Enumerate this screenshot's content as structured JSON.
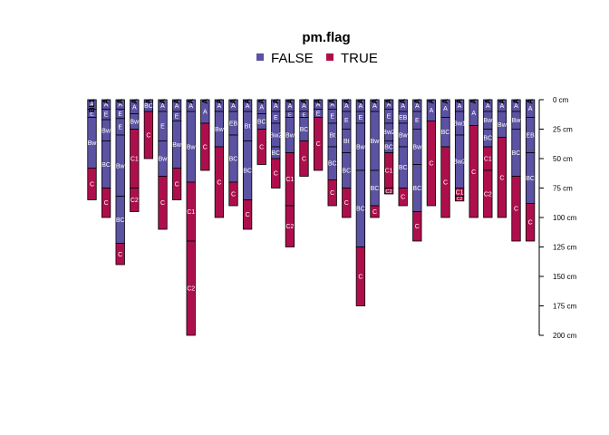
{
  "chart_data": {
    "type": "soil-profile-sketch",
    "legend": {
      "title": "pm.flag",
      "position": "top-center",
      "entries": [
        {
          "label": "FALSE",
          "color": "#5B52A3"
        },
        {
          "label": "TRUE",
          "color": "#AE0F4C"
        }
      ]
    },
    "axis": {
      "side": "right",
      "unit": "cm",
      "range": [
        0,
        200
      ],
      "ticks": [
        0,
        25,
        50,
        75,
        100,
        125,
        150,
        175,
        200
      ],
      "tick_labels": [
        "0 cm",
        "25 cm",
        "50 cm",
        "75 cm",
        "100 cm",
        "125 cm",
        "150 cm",
        "175 cm",
        "200 cm"
      ]
    },
    "profiles": [
      {
        "id": "BL1",
        "horizons": [
          {
            "name": "A",
            "top": 0,
            "bottom": 8,
            "pm": false
          },
          {
            "name": "E",
            "top": 8,
            "bottom": 15,
            "pm": false
          },
          {
            "name": "Bw",
            "top": 15,
            "bottom": 58,
            "pm": false
          },
          {
            "name": "C",
            "top": 58,
            "bottom": 85,
            "pm": true
          }
        ]
      },
      {
        "id": "A",
        "horizons": [
          {
            "name": "A",
            "top": 0,
            "bottom": 8,
            "pm": false
          },
          {
            "name": "E",
            "top": 8,
            "bottom": 17,
            "pm": false
          },
          {
            "name": "Bw",
            "top": 17,
            "bottom": 35,
            "pm": false
          },
          {
            "name": "BC",
            "top": 35,
            "bottom": 75,
            "pm": false
          },
          {
            "name": "C",
            "top": 75,
            "bottom": 100,
            "pm": true
          }
        ]
      },
      {
        "id": "A",
        "horizons": [
          {
            "name": "A",
            "top": 0,
            "bottom": 8,
            "pm": false
          },
          {
            "name": "E",
            "top": 8,
            "bottom": 16,
            "pm": false
          },
          {
            "name": "E",
            "top": 16,
            "bottom": 30,
            "pm": false
          },
          {
            "name": "Bw",
            "top": 30,
            "bottom": 82,
            "pm": false
          },
          {
            "name": "BC",
            "top": 82,
            "bottom": 122,
            "pm": false
          },
          {
            "name": "C",
            "top": 122,
            "bottom": 140,
            "pm": true
          }
        ]
      },
      {
        "id": "A",
        "horizons": [
          {
            "name": "A",
            "top": 0,
            "bottom": 12,
            "pm": false
          },
          {
            "name": "Bw",
            "top": 12,
            "bottom": 25,
            "pm": false
          },
          {
            "name": "C1",
            "top": 25,
            "bottom": 75,
            "pm": true
          },
          {
            "name": "C2",
            "top": 75,
            "bottom": 95,
            "pm": true
          }
        ]
      },
      {
        "id": "A",
        "horizons": [
          {
            "name": "BC",
            "top": 0,
            "bottom": 10,
            "pm": false
          },
          {
            "name": "C",
            "top": 10,
            "bottom": 50,
            "pm": true
          }
        ]
      },
      {
        "id": "A",
        "horizons": [
          {
            "name": "A",
            "top": 0,
            "bottom": 10,
            "pm": false
          },
          {
            "name": "E",
            "top": 10,
            "bottom": 35,
            "pm": false
          },
          {
            "name": "Bw",
            "top": 35,
            "bottom": 65,
            "pm": false
          },
          {
            "name": "C",
            "top": 65,
            "bottom": 110,
            "pm": true
          }
        ]
      },
      {
        "id": "A",
        "horizons": [
          {
            "name": "A",
            "top": 0,
            "bottom": 10,
            "pm": false
          },
          {
            "name": "E",
            "top": 10,
            "bottom": 18,
            "pm": false
          },
          {
            "name": "Bw",
            "top": 18,
            "bottom": 58,
            "pm": false
          },
          {
            "name": "C",
            "top": 58,
            "bottom": 85,
            "pm": true
          }
        ]
      },
      {
        "id": "A",
        "horizons": [
          {
            "name": "A",
            "top": 0,
            "bottom": 10,
            "pm": false
          },
          {
            "name": "Bw",
            "top": 10,
            "bottom": 70,
            "pm": false
          },
          {
            "name": "C1",
            "top": 70,
            "bottom": 120,
            "pm": true
          },
          {
            "name": "C2",
            "top": 120,
            "bottom": 200,
            "pm": true
          }
        ]
      },
      {
        "id": "A",
        "horizons": [
          {
            "name": "A",
            "top": 0,
            "bottom": 20,
            "pm": false
          },
          {
            "name": "C",
            "top": 20,
            "bottom": 60,
            "pm": true
          }
        ]
      },
      {
        "id": "A",
        "horizons": [
          {
            "name": "A",
            "top": 0,
            "bottom": 10,
            "pm": false
          },
          {
            "name": "Bw",
            "top": 10,
            "bottom": 40,
            "pm": false
          },
          {
            "name": "C",
            "top": 40,
            "bottom": 100,
            "pm": true
          }
        ]
      },
      {
        "id": "A",
        "horizons": [
          {
            "name": "A",
            "top": 0,
            "bottom": 10,
            "pm": false
          },
          {
            "name": "EB",
            "top": 10,
            "bottom": 30,
            "pm": false
          },
          {
            "name": "BC",
            "top": 30,
            "bottom": 70,
            "pm": false
          },
          {
            "name": "C",
            "top": 70,
            "bottom": 90,
            "pm": true
          }
        ]
      },
      {
        "id": "A",
        "horizons": [
          {
            "name": "A",
            "top": 0,
            "bottom": 10,
            "pm": false
          },
          {
            "name": "Bt",
            "top": 10,
            "bottom": 35,
            "pm": false
          },
          {
            "name": "BC",
            "top": 35,
            "bottom": 85,
            "pm": false
          },
          {
            "name": "C",
            "top": 85,
            "bottom": 110,
            "pm": true
          }
        ]
      },
      {
        "id": "A",
        "horizons": [
          {
            "name": "A",
            "top": 0,
            "bottom": 12,
            "pm": false
          },
          {
            "name": "BC",
            "top": 12,
            "bottom": 25,
            "pm": false
          },
          {
            "name": "C",
            "top": 25,
            "bottom": 55,
            "pm": true
          }
        ]
      },
      {
        "id": "A",
        "horizons": [
          {
            "name": "A",
            "top": 0,
            "bottom": 10,
            "pm": false
          },
          {
            "name": "E",
            "top": 10,
            "bottom": 20,
            "pm": false
          },
          {
            "name": "Bw2",
            "top": 20,
            "bottom": 40,
            "pm": false
          },
          {
            "name": "BC",
            "top": 40,
            "bottom": 50,
            "pm": false
          },
          {
            "name": "C",
            "top": 50,
            "bottom": 75,
            "pm": true
          }
        ]
      },
      {
        "id": "A",
        "horizons": [
          {
            "name": "A",
            "top": 0,
            "bottom": 10,
            "pm": false
          },
          {
            "name": "E",
            "top": 10,
            "bottom": 15,
            "pm": false
          },
          {
            "name": "Bw",
            "top": 15,
            "bottom": 45,
            "pm": false
          },
          {
            "name": "C1",
            "top": 45,
            "bottom": 90,
            "pm": true
          },
          {
            "name": "C2",
            "top": 90,
            "bottom": 125,
            "pm": true
          }
        ]
      },
      {
        "id": "A",
        "horizons": [
          {
            "name": "A",
            "top": 0,
            "bottom": 10,
            "pm": false
          },
          {
            "name": "E",
            "top": 10,
            "bottom": 15,
            "pm": false
          },
          {
            "name": "BC",
            "top": 15,
            "bottom": 35,
            "pm": false
          },
          {
            "name": "C",
            "top": 35,
            "bottom": 65,
            "pm": true
          }
        ]
      },
      {
        "id": "A",
        "horizons": [
          {
            "name": "A",
            "top": 0,
            "bottom": 8,
            "pm": false
          },
          {
            "name": "E",
            "top": 8,
            "bottom": 15,
            "pm": false
          },
          {
            "name": "C",
            "top": 15,
            "bottom": 60,
            "pm": true
          }
        ]
      },
      {
        "id": "A",
        "horizons": [
          {
            "name": "A",
            "top": 0,
            "bottom": 8,
            "pm": false
          },
          {
            "name": "E",
            "top": 8,
            "bottom": 20,
            "pm": false
          },
          {
            "name": "Bt",
            "top": 20,
            "bottom": 40,
            "pm": false
          },
          {
            "name": "BC",
            "top": 40,
            "bottom": 68,
            "pm": false
          },
          {
            "name": "C",
            "top": 68,
            "bottom": 90,
            "pm": true
          }
        ]
      },
      {
        "id": "A",
        "horizons": [
          {
            "name": "A",
            "top": 0,
            "bottom": 10,
            "pm": false
          },
          {
            "name": "E",
            "top": 10,
            "bottom": 25,
            "pm": false
          },
          {
            "name": "Bt",
            "top": 25,
            "bottom": 45,
            "pm": false
          },
          {
            "name": "BC",
            "top": 45,
            "bottom": 75,
            "pm": false
          },
          {
            "name": "C",
            "top": 75,
            "bottom": 100,
            "pm": true
          }
        ]
      },
      {
        "id": "A",
        "horizons": [
          {
            "name": "A",
            "top": 0,
            "bottom": 10,
            "pm": false
          },
          {
            "name": "E",
            "top": 10,
            "bottom": 20,
            "pm": false
          },
          {
            "name": "Bw",
            "top": 20,
            "bottom": 60,
            "pm": false
          },
          {
            "name": "BC",
            "top": 60,
            "bottom": 125,
            "pm": false
          },
          {
            "name": "C",
            "top": 125,
            "bottom": 175,
            "pm": true
          }
        ]
      },
      {
        "id": "A",
        "horizons": [
          {
            "name": "A",
            "top": 0,
            "bottom": 10,
            "pm": false
          },
          {
            "name": "Bw",
            "top": 10,
            "bottom": 60,
            "pm": false
          },
          {
            "name": "BC",
            "top": 60,
            "bottom": 90,
            "pm": false
          },
          {
            "name": "C",
            "top": 90,
            "bottom": 100,
            "pm": true
          }
        ]
      },
      {
        "id": "A",
        "horizons": [
          {
            "name": "A",
            "top": 0,
            "bottom": 8,
            "pm": false
          },
          {
            "name": "E",
            "top": 8,
            "bottom": 20,
            "pm": false
          },
          {
            "name": "Bw2",
            "top": 20,
            "bottom": 35,
            "pm": false
          },
          {
            "name": "BC",
            "top": 35,
            "bottom": 45,
            "pm": false
          },
          {
            "name": "C1",
            "top": 45,
            "bottom": 75,
            "pm": true
          },
          {
            "name": "C2",
            "top": 75,
            "bottom": 80,
            "pm": true
          }
        ]
      },
      {
        "id": "A",
        "horizons": [
          {
            "name": "A",
            "top": 0,
            "bottom": 10,
            "pm": false
          },
          {
            "name": "EB",
            "top": 10,
            "bottom": 20,
            "pm": false
          },
          {
            "name": "Bw",
            "top": 20,
            "bottom": 40,
            "pm": false
          },
          {
            "name": "BC",
            "top": 40,
            "bottom": 75,
            "pm": false
          },
          {
            "name": "C",
            "top": 75,
            "bottom": 90,
            "pm": true
          }
        ]
      },
      {
        "id": "A",
        "horizons": [
          {
            "name": "A",
            "top": 0,
            "bottom": 10,
            "pm": false
          },
          {
            "name": "E",
            "top": 10,
            "bottom": 25,
            "pm": false
          },
          {
            "name": "Bw",
            "top": 25,
            "bottom": 55,
            "pm": false
          },
          {
            "name": "BC",
            "top": 55,
            "bottom": 95,
            "pm": false
          },
          {
            "name": "C",
            "top": 95,
            "bottom": 120,
            "pm": true
          }
        ]
      },
      {
        "id": "A",
        "horizons": [
          {
            "name": "A",
            "top": 0,
            "bottom": 18,
            "pm": false
          },
          {
            "name": "C",
            "top": 18,
            "bottom": 90,
            "pm": true
          }
        ]
      },
      {
        "id": "A",
        "horizons": [
          {
            "name": "A",
            "top": 0,
            "bottom": 15,
            "pm": false
          },
          {
            "name": "BC",
            "top": 15,
            "bottom": 40,
            "pm": false
          },
          {
            "name": "C",
            "top": 40,
            "bottom": 100,
            "pm": true
          }
        ]
      },
      {
        "id": "A",
        "horizons": [
          {
            "name": "A",
            "top": 0,
            "bottom": 10,
            "pm": false
          },
          {
            "name": "Bw1",
            "top": 10,
            "bottom": 30,
            "pm": false
          },
          {
            "name": "Bw2",
            "top": 30,
            "bottom": 75,
            "pm": false
          },
          {
            "name": "C1",
            "top": 75,
            "bottom": 82,
            "pm": true
          },
          {
            "name": "C2",
            "top": 82,
            "bottom": 86,
            "pm": true
          }
        ]
      },
      {
        "id": "A",
        "horizons": [
          {
            "name": "A",
            "top": 0,
            "bottom": 22,
            "pm": false
          },
          {
            "name": "C",
            "top": 22,
            "bottom": 100,
            "pm": true
          }
        ]
      },
      {
        "id": "A",
        "horizons": [
          {
            "name": "A",
            "top": 0,
            "bottom": 10,
            "pm": false
          },
          {
            "name": "Bw",
            "top": 10,
            "bottom": 25,
            "pm": false
          },
          {
            "name": "BC",
            "top": 25,
            "bottom": 40,
            "pm": false
          },
          {
            "name": "C1",
            "top": 40,
            "bottom": 60,
            "pm": true
          },
          {
            "name": "C2",
            "top": 60,
            "bottom": 100,
            "pm": true
          }
        ]
      },
      {
        "id": "A",
        "horizons": [
          {
            "name": "A",
            "top": 0,
            "bottom": 10,
            "pm": false
          },
          {
            "name": "Bw",
            "top": 10,
            "bottom": 32,
            "pm": false
          },
          {
            "name": "C",
            "top": 32,
            "bottom": 100,
            "pm": true
          }
        ]
      },
      {
        "id": "A",
        "horizons": [
          {
            "name": "A",
            "top": 0,
            "bottom": 10,
            "pm": false
          },
          {
            "name": "Bw",
            "top": 10,
            "bottom": 25,
            "pm": false
          },
          {
            "name": "BC",
            "top": 25,
            "bottom": 65,
            "pm": false
          },
          {
            "name": "C",
            "top": 65,
            "bottom": 120,
            "pm": true
          }
        ]
      },
      {
        "id": "A",
        "horizons": [
          {
            "name": "A",
            "top": 0,
            "bottom": 15,
            "pm": false
          },
          {
            "name": "EB",
            "top": 15,
            "bottom": 45,
            "pm": false
          },
          {
            "name": "BC",
            "top": 45,
            "bottom": 88,
            "pm": false
          },
          {
            "name": "C",
            "top": 88,
            "bottom": 120,
            "pm": true
          }
        ]
      }
    ]
  }
}
